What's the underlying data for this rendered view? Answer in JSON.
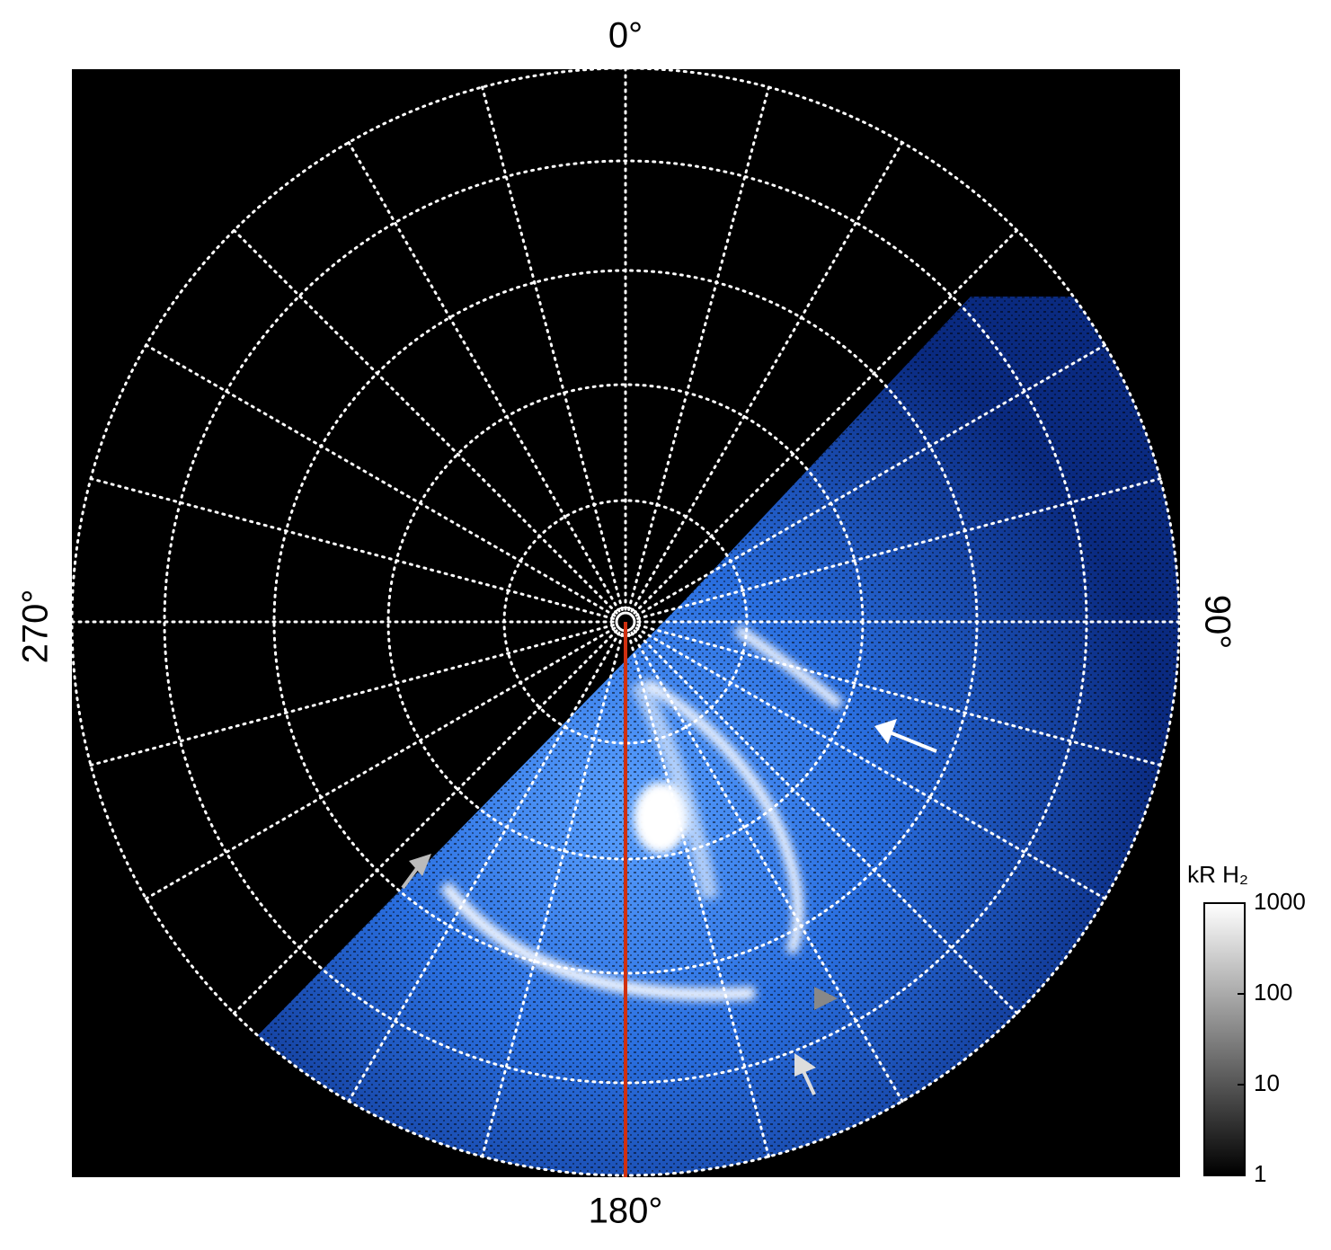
{
  "labels": {
    "top": "0°",
    "right": "90°",
    "bottom": "180°",
    "left": "270°"
  },
  "colorbar": {
    "title": "kR H₂",
    "lim": [
      1,
      1000
    ],
    "ticks": [
      1,
      10,
      100,
      1000
    ],
    "log": true
  }
}
